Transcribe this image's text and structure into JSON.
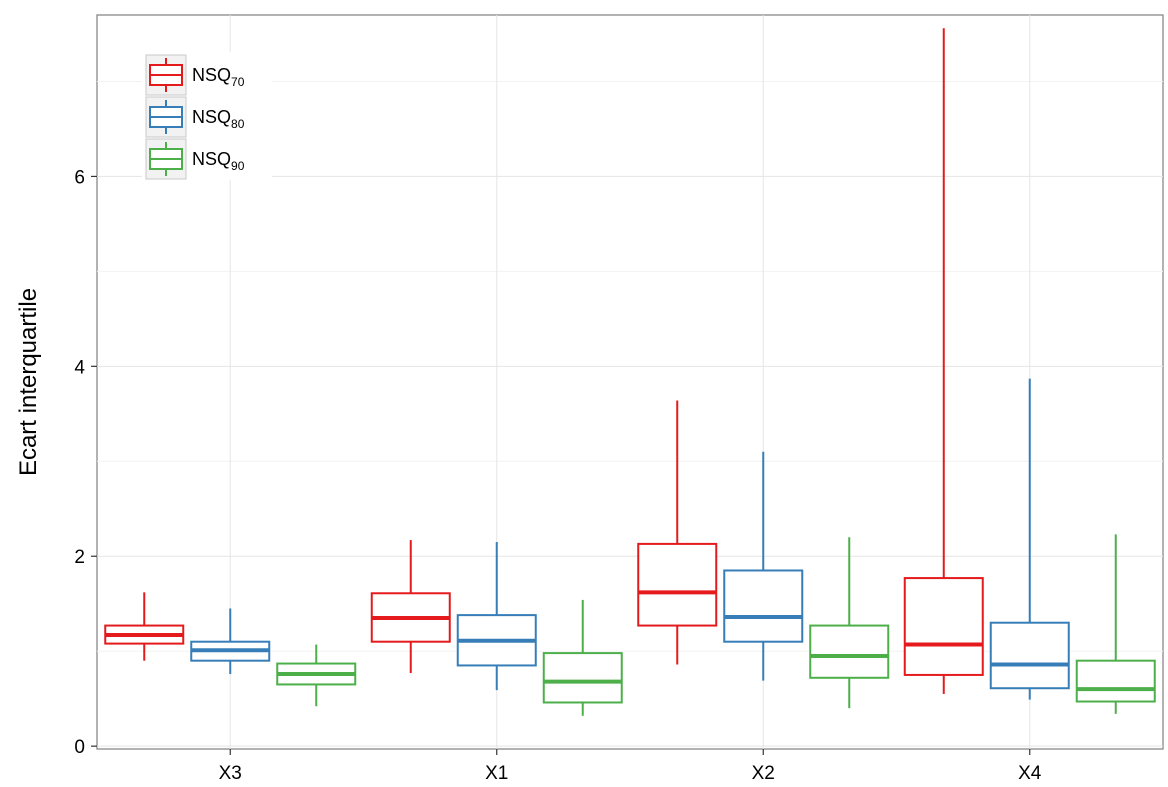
{
  "chart_data": {
    "type": "boxplot",
    "title": "",
    "xlabel": "",
    "ylabel": "Ecart interquartile",
    "categories": [
      "X3",
      "X1",
      "X2",
      "X4"
    ],
    "ylim": [
      -0.03,
      7.7
    ],
    "yticks": [
      0,
      2,
      4,
      6
    ],
    "grid": true,
    "legend_position": "top-left",
    "series": [
      {
        "name": "NSQ",
        "name_subscript": "70",
        "color": "#E41A1C",
        "boxes": [
          {
            "min": 0.9,
            "q1": 1.08,
            "median": 1.17,
            "q3": 1.27,
            "max": 1.62
          },
          {
            "min": 0.77,
            "q1": 1.1,
            "median": 1.35,
            "q3": 1.61,
            "max": 2.17
          },
          {
            "min": 0.86,
            "q1": 1.27,
            "median": 1.62,
            "q3": 2.13,
            "max": 3.64
          },
          {
            "min": 0.55,
            "q1": 0.75,
            "median": 1.07,
            "q3": 1.77,
            "max": 7.56
          }
        ]
      },
      {
        "name": "NSQ",
        "name_subscript": "80",
        "color": "#377EB8",
        "boxes": [
          {
            "min": 0.76,
            "q1": 0.9,
            "median": 1.01,
            "q3": 1.1,
            "max": 1.45
          },
          {
            "min": 0.59,
            "q1": 0.85,
            "median": 1.11,
            "q3": 1.38,
            "max": 2.15
          },
          {
            "min": 0.69,
            "q1": 1.1,
            "median": 1.36,
            "q3": 1.85,
            "max": 3.1
          },
          {
            "min": 0.49,
            "q1": 0.61,
            "median": 0.86,
            "q3": 1.3,
            "max": 3.87
          }
        ]
      },
      {
        "name": "NSQ",
        "name_subscript": "90",
        "color": "#4DAF4A",
        "boxes": [
          {
            "min": 0.42,
            "q1": 0.65,
            "median": 0.76,
            "q3": 0.87,
            "max": 1.07
          },
          {
            "min": 0.32,
            "q1": 0.46,
            "median": 0.68,
            "q3": 0.98,
            "max": 1.54
          },
          {
            "min": 0.4,
            "q1": 0.72,
            "median": 0.95,
            "q3": 1.27,
            "max": 2.2
          },
          {
            "min": 0.34,
            "q1": 0.47,
            "median": 0.6,
            "q3": 0.9,
            "max": 2.23
          }
        ]
      }
    ]
  }
}
